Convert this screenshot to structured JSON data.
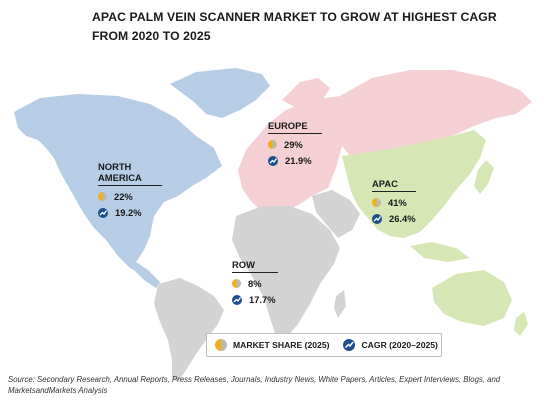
{
  "title": "APAC PALM VEIN SCANNER MARKET TO GROW AT HIGHEST CAGR FROM 2020 TO 2025",
  "regions": {
    "north_america": {
      "name": "NORTH AMERICA",
      "market_share": "22%",
      "cagr": "19.2%"
    },
    "europe": {
      "name": "EUROPE",
      "market_share": "29%",
      "cagr": "21.9%"
    },
    "apac": {
      "name": "APAC",
      "market_share": "41%",
      "cagr": "26.4%"
    },
    "row": {
      "name": "ROW",
      "market_share": "8%",
      "cagr": "17.7%"
    }
  },
  "legend": {
    "market_share_label": "MARKET SHARE (2025)",
    "cagr_label": "CAGR (2020–2025)"
  },
  "source": "Source: Secondary Research, Annual Reports, Press Releases, Journals, Industry News, White Papers, Articles, Expert Interviews, Blogs, and MarketsandMarkets Analysis",
  "colors": {
    "north_america": "#b7cde6",
    "europe": "#f4cfd3",
    "apac": "#d6e6b4",
    "row": "#d3d3d3",
    "pie_share": "#f2b015",
    "cagr_icon": "#1d4f8c"
  }
}
